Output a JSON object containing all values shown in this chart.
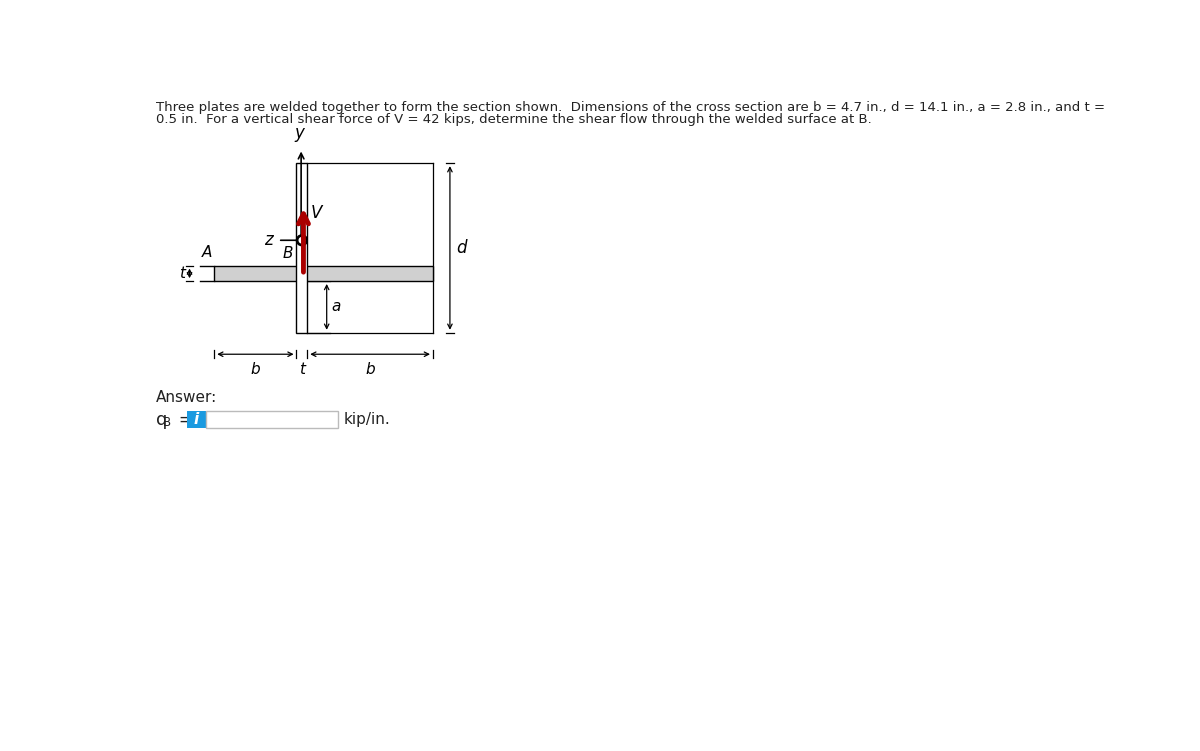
{
  "title_line1": "Three plates are welded together to form the section shown.  Dimensions of the cross section are b = 4.7 in., d = 14.1 in., a = 2.8 in., and t =",
  "title_line2": "0.5 in.  For a vertical shear force of V = 42 kips, determine the shear flow through the welded surface at B.",
  "background_color": "#ffffff",
  "fig_width": 12.0,
  "fig_height": 7.51,
  "label_V": "V",
  "label_y": "y",
  "label_z": "z",
  "label_A": "A",
  "label_B": "B",
  "label_a": "a",
  "label_b": "b",
  "label_t": "t",
  "label_d": "d",
  "answer_label": "Answer:",
  "unit_label": "kip/in.",
  "colors": {
    "web_fill": "#ffffff",
    "web_stroke": "#000000",
    "flange_fill": "#d0d0d0",
    "flange_stroke": "#000000",
    "v_arrow": "#aa0000",
    "outline": "#000000",
    "box_fill": "#ffffff",
    "box_border": "#aaaaaa",
    "blue_button": "#1a9ae0",
    "text_dark": "#222222"
  }
}
